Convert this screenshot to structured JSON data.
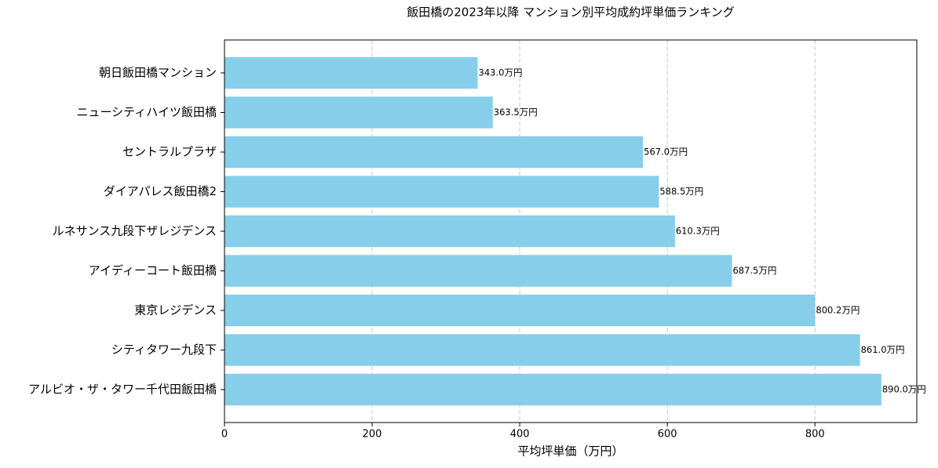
{
  "chart_data": {
    "type": "barh",
    "title": "飯田橋の2023年以降 マンション別平均成約坪単価ランキング",
    "x_label": "平均坪単価（万円）",
    "categories": [
      "朝日飯田橋マンション",
      "ニューシティハイツ飯田橋",
      "セントラルプラザ",
      "ダイアパレス飯田橋2",
      "ルネサンス九段下ザレジデンス",
      "アイディーコート飯田橋",
      "東京レジデンス",
      "シティタワー九段下",
      "アルビオ・ザ・タワー千代田飯田橋"
    ],
    "values": [
      343.0,
      363.5,
      567.0,
      588.5,
      610.3,
      687.5,
      800.2,
      861.0,
      890.0
    ],
    "value_labels": [
      "343.0万円",
      "363.5万円",
      "567.0万円",
      "588.5万円",
      "610.3万円",
      "687.5万円",
      "800.2万円",
      "861.0万円",
      "890.0万円"
    ],
    "color": "#87ceeb",
    "xlim": [
      0,
      938
    ],
    "xticks": [
      0,
      200,
      400,
      600,
      800
    ],
    "grid": true
  }
}
